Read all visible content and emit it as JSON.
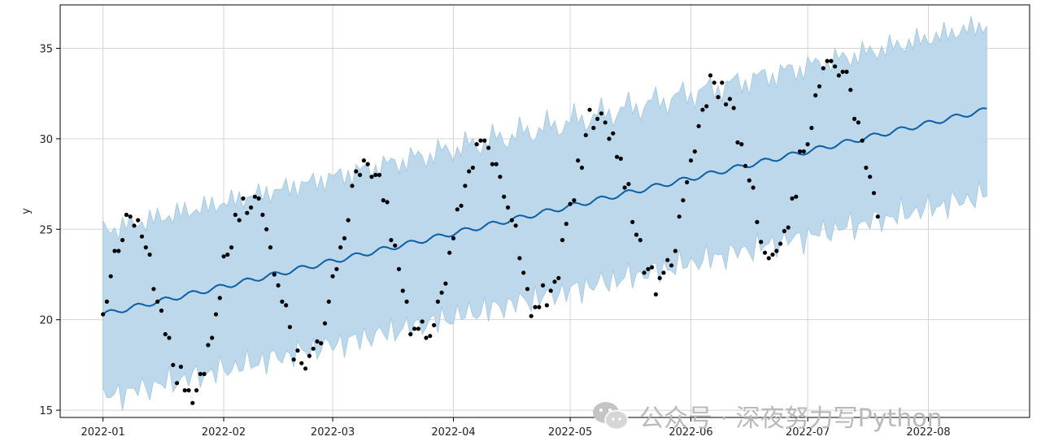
{
  "chart_data": {
    "type": "line",
    "title": "",
    "xlabel": "",
    "ylabel": "y",
    "x_ticks": [
      "2022-01",
      "2022-02",
      "2022-03",
      "2022-04",
      "2022-05",
      "2022-06",
      "2022-07",
      "2022-08"
    ],
    "y_ticks": [
      15,
      20,
      25,
      30,
      35
    ],
    "xlim": [
      "2021-12-21",
      "2022-08-27"
    ],
    "ylim": [
      14.6,
      37.4
    ],
    "grid": true,
    "colors": {
      "forecast": "#0b5ea8",
      "interval": "#bcd8ea",
      "interval_edge": "#a2c6e0",
      "observed": "#000000"
    },
    "forecast": {
      "start": "2022-01-01",
      "end": "2022-08-16",
      "y_start": 20.3,
      "y_end": 31.6,
      "weekly_amplitude": 0.15,
      "interval_half_width_start": 4.6,
      "interval_half_width_end": 4.7
    },
    "observed": [
      {
        "x": "2022-01-01",
        "y": 20.3
      },
      {
        "x": "2022-01-02",
        "y": 21.0
      },
      {
        "x": "2022-01-03",
        "y": 22.4
      },
      {
        "x": "2022-01-04",
        "y": 23.8
      },
      {
        "x": "2022-01-05",
        "y": 23.8
      },
      {
        "x": "2022-01-06",
        "y": 24.4
      },
      {
        "x": "2022-01-07",
        "y": 25.8
      },
      {
        "x": "2022-01-08",
        "y": 25.7
      },
      {
        "x": "2022-01-09",
        "y": 25.2
      },
      {
        "x": "2022-01-10",
        "y": 25.5
      },
      {
        "x": "2022-01-11",
        "y": 24.6
      },
      {
        "x": "2022-01-12",
        "y": 24.0
      },
      {
        "x": "2022-01-13",
        "y": 23.6
      },
      {
        "x": "2022-01-14",
        "y": 21.7
      },
      {
        "x": "2022-01-15",
        "y": 21.0
      },
      {
        "x": "2022-01-16",
        "y": 20.5
      },
      {
        "x": "2022-01-17",
        "y": 19.2
      },
      {
        "x": "2022-01-18",
        "y": 19.0
      },
      {
        "x": "2022-01-19",
        "y": 17.5
      },
      {
        "x": "2022-01-20",
        "y": 16.5
      },
      {
        "x": "2022-01-21",
        "y": 17.4
      },
      {
        "x": "2022-01-22",
        "y": 16.1
      },
      {
        "x": "2022-01-23",
        "y": 16.1
      },
      {
        "x": "2022-01-24",
        "y": 15.4
      },
      {
        "x": "2022-01-25",
        "y": 16.1
      },
      {
        "x": "2022-01-26",
        "y": 17.0
      },
      {
        "x": "2022-01-27",
        "y": 17.0
      },
      {
        "x": "2022-01-28",
        "y": 18.6
      },
      {
        "x": "2022-01-29",
        "y": 19.0
      },
      {
        "x": "2022-01-30",
        "y": 20.3
      },
      {
        "x": "2022-01-31",
        "y": 21.2
      },
      {
        "x": "2022-02-01",
        "y": 23.5
      },
      {
        "x": "2022-02-02",
        "y": 23.6
      },
      {
        "x": "2022-02-03",
        "y": 24.0
      },
      {
        "x": "2022-02-04",
        "y": 25.8
      },
      {
        "x": "2022-02-05",
        "y": 25.5
      },
      {
        "x": "2022-02-06",
        "y": 26.7
      },
      {
        "x": "2022-02-07",
        "y": 25.9
      },
      {
        "x": "2022-02-08",
        "y": 26.2
      },
      {
        "x": "2022-02-09",
        "y": 26.8
      },
      {
        "x": "2022-02-10",
        "y": 26.7
      },
      {
        "x": "2022-02-11",
        "y": 25.8
      },
      {
        "x": "2022-02-12",
        "y": 25.0
      },
      {
        "x": "2022-02-13",
        "y": 24.0
      },
      {
        "x": "2022-02-14",
        "y": 22.5
      },
      {
        "x": "2022-02-15",
        "y": 21.9
      },
      {
        "x": "2022-02-16",
        "y": 21.0
      },
      {
        "x": "2022-02-17",
        "y": 20.8
      },
      {
        "x": "2022-02-18",
        "y": 19.6
      },
      {
        "x": "2022-02-19",
        "y": 17.8
      },
      {
        "x": "2022-02-20",
        "y": 18.3
      },
      {
        "x": "2022-02-21",
        "y": 17.6
      },
      {
        "x": "2022-02-22",
        "y": 17.3
      },
      {
        "x": "2022-02-23",
        "y": 18.0
      },
      {
        "x": "2022-02-24",
        "y": 18.4
      },
      {
        "x": "2022-02-25",
        "y": 18.8
      },
      {
        "x": "2022-02-26",
        "y": 18.7
      },
      {
        "x": "2022-02-27",
        "y": 19.8
      },
      {
        "x": "2022-02-28",
        "y": 21.0
      },
      {
        "x": "2022-03-01",
        "y": 22.4
      },
      {
        "x": "2022-03-02",
        "y": 22.8
      },
      {
        "x": "2022-03-03",
        "y": 24.0
      },
      {
        "x": "2022-03-04",
        "y": 24.5
      },
      {
        "x": "2022-03-05",
        "y": 25.5
      },
      {
        "x": "2022-03-06",
        "y": 27.4
      },
      {
        "x": "2022-03-07",
        "y": 28.2
      },
      {
        "x": "2022-03-08",
        "y": 28.0
      },
      {
        "x": "2022-03-09",
        "y": 28.8
      },
      {
        "x": "2022-03-10",
        "y": 28.6
      },
      {
        "x": "2022-03-11",
        "y": 27.9
      },
      {
        "x": "2022-03-12",
        "y": 28.0
      },
      {
        "x": "2022-03-13",
        "y": 28.0
      },
      {
        "x": "2022-03-14",
        "y": 26.6
      },
      {
        "x": "2022-03-15",
        "y": 26.5
      },
      {
        "x": "2022-03-16",
        "y": 24.4
      },
      {
        "x": "2022-03-17",
        "y": 24.1
      },
      {
        "x": "2022-03-18",
        "y": 22.8
      },
      {
        "x": "2022-03-19",
        "y": 21.6
      },
      {
        "x": "2022-03-20",
        "y": 21.0
      },
      {
        "x": "2022-03-21",
        "y": 19.2
      },
      {
        "x": "2022-03-22",
        "y": 19.5
      },
      {
        "x": "2022-03-23",
        "y": 19.5
      },
      {
        "x": "2022-03-24",
        "y": 19.9
      },
      {
        "x": "2022-03-25",
        "y": 19.0
      },
      {
        "x": "2022-03-26",
        "y": 19.1
      },
      {
        "x": "2022-03-27",
        "y": 19.7
      },
      {
        "x": "2022-03-28",
        "y": 21.0
      },
      {
        "x": "2022-03-29",
        "y": 21.5
      },
      {
        "x": "2022-03-30",
        "y": 22.0
      },
      {
        "x": "2022-03-31",
        "y": 23.7
      },
      {
        "x": "2022-04-01",
        "y": 24.5
      },
      {
        "x": "2022-04-02",
        "y": 26.1
      },
      {
        "x": "2022-04-03",
        "y": 26.3
      },
      {
        "x": "2022-04-04",
        "y": 27.4
      },
      {
        "x": "2022-04-05",
        "y": 28.2
      },
      {
        "x": "2022-04-06",
        "y": 28.4
      },
      {
        "x": "2022-04-07",
        "y": 29.7
      },
      {
        "x": "2022-04-08",
        "y": 29.9
      },
      {
        "x": "2022-04-09",
        "y": 29.9
      },
      {
        "x": "2022-04-10",
        "y": 29.5
      },
      {
        "x": "2022-04-11",
        "y": 28.6
      },
      {
        "x": "2022-04-12",
        "y": 28.6
      },
      {
        "x": "2022-04-13",
        "y": 27.9
      },
      {
        "x": "2022-04-14",
        "y": 26.8
      },
      {
        "x": "2022-04-15",
        "y": 26.2
      },
      {
        "x": "2022-04-16",
        "y": 25.5
      },
      {
        "x": "2022-04-17",
        "y": 25.2
      },
      {
        "x": "2022-04-18",
        "y": 23.4
      },
      {
        "x": "2022-04-19",
        "y": 22.6
      },
      {
        "x": "2022-04-20",
        "y": 21.7
      },
      {
        "x": "2022-04-21",
        "y": 20.2
      },
      {
        "x": "2022-04-22",
        "y": 20.7
      },
      {
        "x": "2022-04-23",
        "y": 20.7
      },
      {
        "x": "2022-04-24",
        "y": 21.9
      },
      {
        "x": "2022-04-25",
        "y": 20.8
      },
      {
        "x": "2022-04-26",
        "y": 21.6
      },
      {
        "x": "2022-04-27",
        "y": 22.1
      },
      {
        "x": "2022-04-28",
        "y": 22.3
      },
      {
        "x": "2022-04-29",
        "y": 24.4
      },
      {
        "x": "2022-04-30",
        "y": 25.3
      },
      {
        "x": "2022-05-01",
        "y": 26.4
      },
      {
        "x": "2022-05-02",
        "y": 26.6
      },
      {
        "x": "2022-05-03",
        "y": 28.8
      },
      {
        "x": "2022-05-04",
        "y": 28.4
      },
      {
        "x": "2022-05-05",
        "y": 30.2
      },
      {
        "x": "2022-05-06",
        "y": 31.6
      },
      {
        "x": "2022-05-07",
        "y": 30.6
      },
      {
        "x": "2022-05-08",
        "y": 31.1
      },
      {
        "x": "2022-05-09",
        "y": 31.4
      },
      {
        "x": "2022-05-10",
        "y": 30.9
      },
      {
        "x": "2022-05-11",
        "y": 30.0
      },
      {
        "x": "2022-05-12",
        "y": 30.3
      },
      {
        "x": "2022-05-13",
        "y": 29.0
      },
      {
        "x": "2022-05-14",
        "y": 28.9
      },
      {
        "x": "2022-05-15",
        "y": 27.3
      },
      {
        "x": "2022-05-16",
        "y": 27.5
      },
      {
        "x": "2022-05-17",
        "y": 25.4
      },
      {
        "x": "2022-05-18",
        "y": 24.7
      },
      {
        "x": "2022-05-19",
        "y": 24.4
      },
      {
        "x": "2022-05-20",
        "y": 22.6
      },
      {
        "x": "2022-05-21",
        "y": 22.8
      },
      {
        "x": "2022-05-22",
        "y": 22.9
      },
      {
        "x": "2022-05-23",
        "y": 21.4
      },
      {
        "x": "2022-05-24",
        "y": 22.3
      },
      {
        "x": "2022-05-25",
        "y": 22.6
      },
      {
        "x": "2022-05-26",
        "y": 23.3
      },
      {
        "x": "2022-05-27",
        "y": 23.0
      },
      {
        "x": "2022-05-28",
        "y": 23.8
      },
      {
        "x": "2022-05-29",
        "y": 25.7
      },
      {
        "x": "2022-05-30",
        "y": 26.6
      },
      {
        "x": "2022-05-31",
        "y": 27.6
      },
      {
        "x": "2022-06-01",
        "y": 28.8
      },
      {
        "x": "2022-06-02",
        "y": 29.3
      },
      {
        "x": "2022-06-03",
        "y": 30.7
      },
      {
        "x": "2022-06-04",
        "y": 31.6
      },
      {
        "x": "2022-06-05",
        "y": 31.8
      },
      {
        "x": "2022-06-06",
        "y": 33.5
      },
      {
        "x": "2022-06-07",
        "y": 33.1
      },
      {
        "x": "2022-06-08",
        "y": 32.3
      },
      {
        "x": "2022-06-09",
        "y": 33.1
      },
      {
        "x": "2022-06-10",
        "y": 31.9
      },
      {
        "x": "2022-06-11",
        "y": 32.2
      },
      {
        "x": "2022-06-12",
        "y": 31.7
      },
      {
        "x": "2022-06-13",
        "y": 29.8
      },
      {
        "x": "2022-06-14",
        "y": 29.7
      },
      {
        "x": "2022-06-15",
        "y": 28.5
      },
      {
        "x": "2022-06-16",
        "y": 27.7
      },
      {
        "x": "2022-06-17",
        "y": 27.3
      },
      {
        "x": "2022-06-18",
        "y": 25.4
      },
      {
        "x": "2022-06-19",
        "y": 24.3
      },
      {
        "x": "2022-06-20",
        "y": 23.7
      },
      {
        "x": "2022-06-21",
        "y": 23.4
      },
      {
        "x": "2022-06-22",
        "y": 23.6
      },
      {
        "x": "2022-06-23",
        "y": 23.8
      },
      {
        "x": "2022-06-24",
        "y": 24.2
      },
      {
        "x": "2022-06-25",
        "y": 24.9
      },
      {
        "x": "2022-06-26",
        "y": 25.1
      },
      {
        "x": "2022-06-27",
        "y": 26.7
      },
      {
        "x": "2022-06-28",
        "y": 26.8
      },
      {
        "x": "2022-06-29",
        "y": 29.3
      },
      {
        "x": "2022-06-30",
        "y": 29.3
      },
      {
        "x": "2022-07-01",
        "y": 29.7
      },
      {
        "x": "2022-07-02",
        "y": 30.6
      },
      {
        "x": "2022-07-03",
        "y": 32.4
      },
      {
        "x": "2022-07-04",
        "y": 32.9
      },
      {
        "x": "2022-07-05",
        "y": 33.9
      },
      {
        "x": "2022-07-06",
        "y": 34.3
      },
      {
        "x": "2022-07-07",
        "y": 34.3
      },
      {
        "x": "2022-07-08",
        "y": 34.0
      },
      {
        "x": "2022-07-09",
        "y": 33.5
      },
      {
        "x": "2022-07-10",
        "y": 33.7
      },
      {
        "x": "2022-07-11",
        "y": 33.7
      },
      {
        "x": "2022-07-12",
        "y": 32.7
      },
      {
        "x": "2022-07-13",
        "y": 31.1
      },
      {
        "x": "2022-07-14",
        "y": 30.9
      },
      {
        "x": "2022-07-15",
        "y": 29.9
      },
      {
        "x": "2022-07-16",
        "y": 28.4
      },
      {
        "x": "2022-07-17",
        "y": 27.9
      },
      {
        "x": "2022-07-18",
        "y": 27.0
      },
      {
        "x": "2022-07-19",
        "y": 25.7
      }
    ]
  },
  "watermark": {
    "text": "公众号 · 深夜努力写Python",
    "icon": "wechat-icon"
  }
}
